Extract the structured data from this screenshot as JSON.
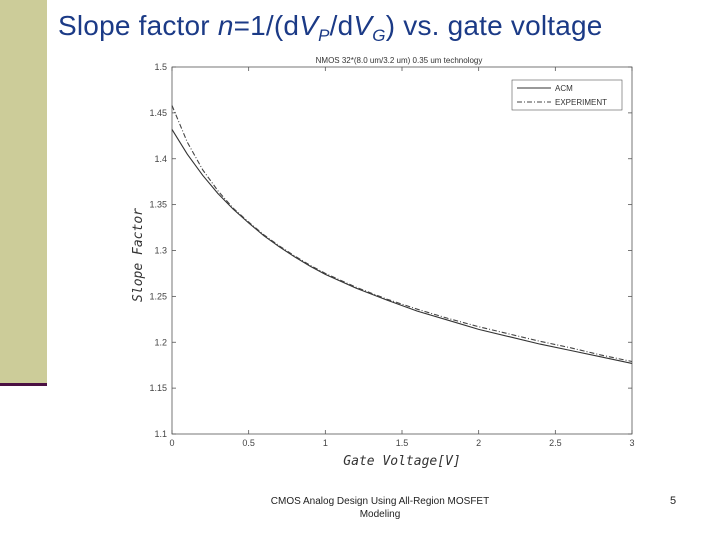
{
  "slide": {
    "title_prefix": "Slope factor ",
    "title_n": "n",
    "title_eq": "=1/(d",
    "title_v1": "V",
    "title_sub_p": "P",
    "title_slash": "/d",
    "title_v2": "V",
    "title_sub_g": "G",
    "title_suffix": ") vs. gate voltage",
    "footer": "CMOS Analog Design Using All-Region MOSFET Modeling",
    "page_number": "5"
  },
  "chart_data": {
    "type": "line",
    "title": "NMOS   32*(8.0 um/3.2 um)   0.35 um technology",
    "xlabel": "Gate Voltage[V]",
    "ylabel": "Slope Factor",
    "xlim": [
      0,
      3
    ],
    "ylim": [
      1.1,
      1.5
    ],
    "x_ticks": [
      "0",
      "0.5",
      "1",
      "1.5",
      "2",
      "2.5",
      "3"
    ],
    "y_ticks": [
      "1.1",
      "1.15",
      "1.2",
      "1.25",
      "1.3",
      "1.35",
      "1.4",
      "1.45",
      "1.5"
    ],
    "grid": false,
    "legend_position": "top-right",
    "series": [
      {
        "name": "ACM",
        "x": [
          0,
          0.1,
          0.2,
          0.3,
          0.4,
          0.5,
          0.6,
          0.7,
          0.8,
          0.9,
          1.0,
          1.2,
          1.4,
          1.6,
          1.8,
          2.0,
          2.2,
          2.4,
          2.6,
          2.8,
          3.0
        ],
        "values": [
          1.432,
          1.405,
          1.382,
          1.362,
          1.345,
          1.33,
          1.316,
          1.304,
          1.293,
          1.283,
          1.274,
          1.259,
          1.246,
          1.234,
          1.224,
          1.214,
          1.206,
          1.198,
          1.191,
          1.184,
          1.177
        ]
      },
      {
        "name": "EXPERIMENT",
        "x": [
          0,
          0.1,
          0.2,
          0.3,
          0.4,
          0.5,
          0.6,
          0.7,
          0.8,
          0.9,
          1.0,
          1.2,
          1.4,
          1.6,
          1.8,
          2.0,
          2.2,
          2.4,
          2.6,
          2.8,
          3.0
        ],
        "values": [
          1.458,
          1.418,
          1.388,
          1.365,
          1.346,
          1.331,
          1.317,
          1.305,
          1.294,
          1.284,
          1.275,
          1.26,
          1.247,
          1.236,
          1.226,
          1.217,
          1.209,
          1.201,
          1.194,
          1.186,
          1.179
        ]
      }
    ]
  }
}
